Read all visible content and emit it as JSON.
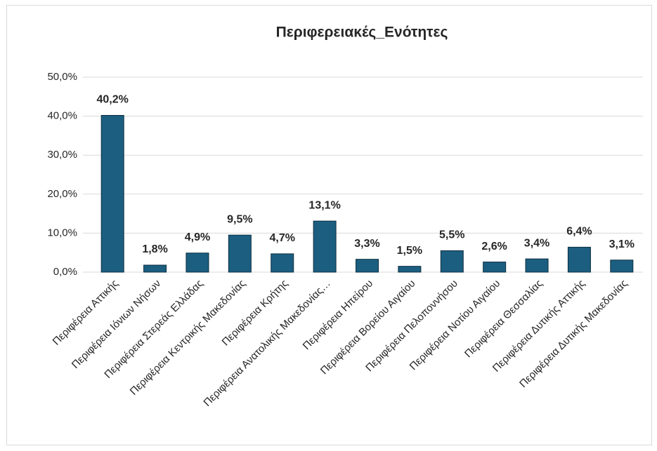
{
  "chart_data": {
    "type": "bar",
    "title": "Περιφερειακές_Ενότητες",
    "categories": [
      "Περιφέρεια Αττικής",
      "Περιφέρεια Ιόνιων Νήσων",
      "Περιφέρεια Στερεάς Ελλάδας",
      "Περιφέρεια Κεντρικής Μακεδονίας",
      "Περιφέρεια Κρήτης",
      "Περιφέρεια Ανατολικής Μακεδονίας…",
      "Περιφέρεια Ηπείρου",
      "Περιφέρεια Βορείου Αιγαίου",
      "Περιφέρεια Πελοποννήσου",
      "Περιφέρεια Νοτίου Αιγαίου",
      "Περιφέρεια Θεσσαλίας",
      "Περιφέρεια Δυτικής Αττικής",
      "Περιφέρεια Δυτικής Μακεδονίας"
    ],
    "values": [
      40.2,
      1.8,
      4.9,
      9.5,
      4.7,
      13.1,
      3.3,
      1.5,
      5.5,
      2.6,
      3.4,
      6.4,
      3.1
    ],
    "value_labels": [
      "40,2%",
      "1,8%",
      "4,9%",
      "9,5%",
      "4,7%",
      "13,1%",
      "3,3%",
      "1,5%",
      "5,5%",
      "2,6%",
      "3,4%",
      "6,4%",
      "3,1%"
    ],
    "color": "#1b5e80",
    "ylim": [
      0,
      50
    ],
    "yticks": [
      {
        "value": 0,
        "label": "0,0%"
      },
      {
        "value": 10,
        "label": "10,0%"
      },
      {
        "value": 20,
        "label": "20,0%"
      },
      {
        "value": 30,
        "label": "30,0%"
      },
      {
        "value": 40,
        "label": "40,0%"
      },
      {
        "value": 50,
        "label": "50,0%"
      }
    ],
    "grid": true
  }
}
